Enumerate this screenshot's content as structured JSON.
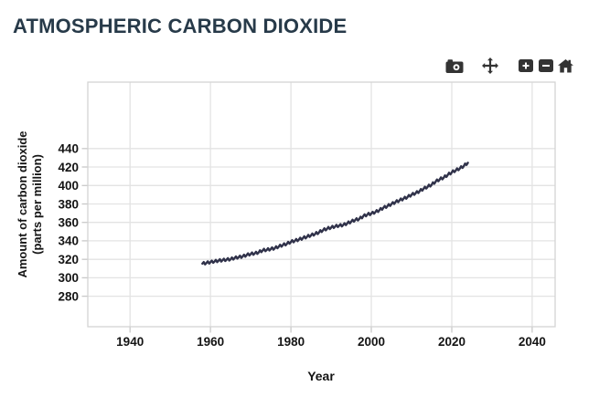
{
  "header": {
    "title": "ATMOSPHERIC CARBON DIOXIDE"
  },
  "toolbar": {
    "icons": [
      "camera",
      "pan",
      "zoom-in",
      "zoom-out",
      "home"
    ]
  },
  "chart_data": {
    "type": "line",
    "title": "ATMOSPHERIC CARBON DIOXIDE",
    "xlabel": "Year",
    "ylabel": "Amount of carbon dioxide (parts per million)",
    "ylabel_lines": [
      "Amount of carbon dioxide",
      "(parts per million)"
    ],
    "x_ticks": [
      1940,
      1960,
      1980,
      2000,
      2020,
      2040
    ],
    "y_ticks": [
      280,
      300,
      320,
      340,
      360,
      380,
      400,
      420,
      440
    ],
    "xlim": [
      1929.5,
      2045.7
    ],
    "ylim": [
      247,
      512
    ],
    "grid": true,
    "legend_position": "none",
    "line_color": "#30324a",
    "grid_color": "#e3e3e3",
    "frame_color": "#d4d4d4",
    "tick_mark_color": "#c9c9c9",
    "seasonal_oscillation_ppm": 1.5,
    "series": [
      {
        "name": "carbon dioxide",
        "x": [
          1958,
          1959,
          1960,
          1961,
          1962,
          1963,
          1964,
          1965,
          1966,
          1967,
          1968,
          1969,
          1970,
          1971,
          1972,
          1973,
          1974,
          1975,
          1976,
          1977,
          1978,
          1979,
          1980,
          1981,
          1982,
          1983,
          1984,
          1985,
          1986,
          1987,
          1988,
          1989,
          1990,
          1991,
          1992,
          1993,
          1994,
          1995,
          1996,
          1997,
          1998,
          1999,
          2000,
          2001,
          2002,
          2003,
          2004,
          2005,
          2006,
          2007,
          2008,
          2009,
          2010,
          2011,
          2012,
          2013,
          2014,
          2015,
          2016,
          2017,
          2018,
          2019,
          2020,
          2021,
          2022,
          2023,
          2024
        ],
        "y": [
          315.3,
          316.0,
          316.9,
          317.6,
          318.5,
          319.0,
          319.6,
          320.0,
          321.4,
          322.2,
          323.0,
          324.6,
          325.7,
          326.3,
          327.5,
          329.7,
          330.2,
          331.1,
          332.0,
          333.8,
          335.4,
          336.8,
          338.8,
          340.1,
          341.4,
          343.0,
          344.4,
          346.0,
          347.4,
          349.2,
          351.6,
          353.1,
          354.4,
          355.6,
          356.4,
          357.1,
          358.8,
          360.8,
          362.6,
          363.7,
          366.7,
          368.4,
          369.5,
          371.1,
          373.2,
          375.8,
          377.5,
          379.8,
          381.9,
          383.8,
          385.6,
          387.4,
          389.9,
          391.6,
          393.8,
          396.5,
          398.6,
          400.8,
          404.2,
          406.6,
          408.5,
          411.4,
          414.2,
          416.4,
          418.5,
          421.1,
          424.6
        ]
      }
    ]
  }
}
